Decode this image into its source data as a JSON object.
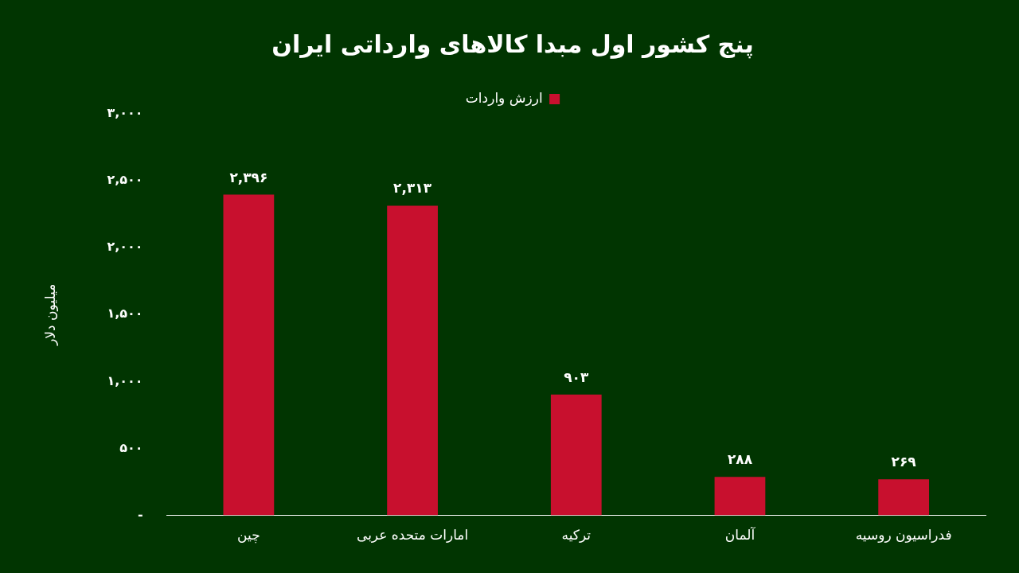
{
  "chart_data": {
    "type": "bar",
    "title": "پنج کشور اول مبدا کالاهای وارداتی ایران",
    "ylabel": "میلیون دلار",
    "categories": [
      "چین",
      "امارات متحده عربی",
      "ترکیه",
      "آلمان",
      "فدراسیون روسیه"
    ],
    "series": [
      {
        "name": "ارزش واردات",
        "color": "#c8102e",
        "values": [
          2396,
          2313,
          903,
          288,
          269
        ],
        "value_labels": [
          "۲,۳۹۶",
          "۲,۳۱۳",
          "۹۰۳",
          "۲۸۸",
          "۲۶۹"
        ]
      }
    ],
    "ylim": [
      0,
      3000
    ],
    "yticks": [
      {
        "value": 0,
        "label": "-"
      },
      {
        "value": 500,
        "label": "۵۰۰"
      },
      {
        "value": 1000,
        "label": "۱,۰۰۰"
      },
      {
        "value": 1500,
        "label": "۱,۵۰۰"
      },
      {
        "value": 2000,
        "label": "۲,۰۰۰"
      },
      {
        "value": 2500,
        "label": "۲,۵۰۰"
      },
      {
        "value": 3000,
        "label": "۳,۰۰۰"
      }
    ],
    "grid": false,
    "legend": "top"
  }
}
